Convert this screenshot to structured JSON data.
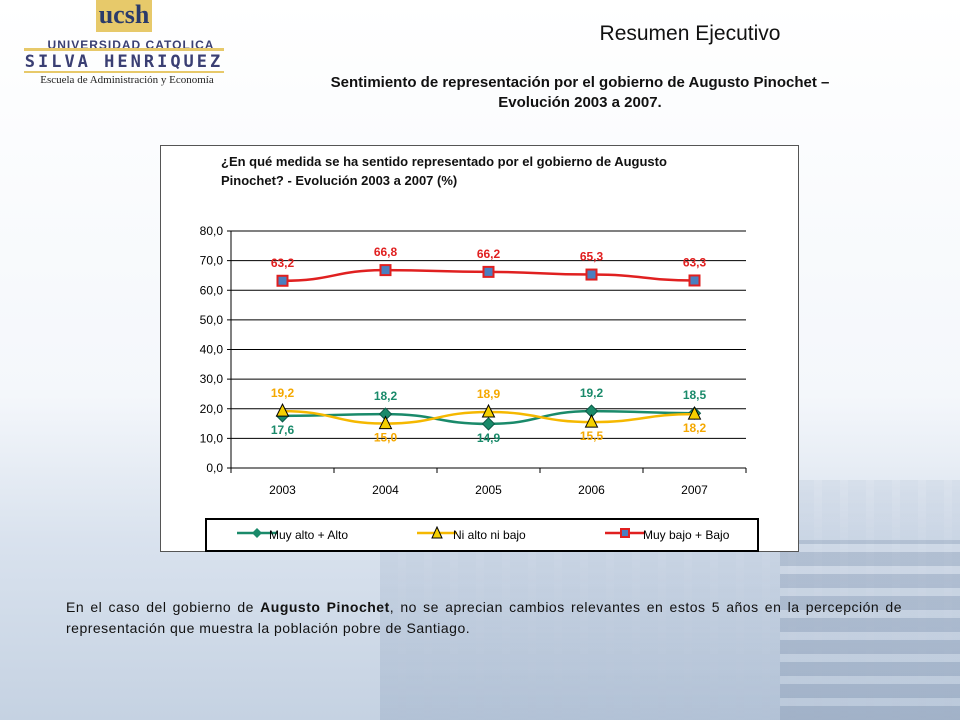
{
  "logo": {
    "acronym": "ucsh",
    "line1": "UNIVERSIDAD CATOLICA",
    "line2": "SILVA HENRIQUEZ",
    "school": "Escuela de Administración y Economía"
  },
  "header": {
    "title": "Resumen Ejecutivo",
    "subtitle_line1": "Sentimiento de representación por el gobierno de Augusto Pinochet –",
    "subtitle_line2": "Evolución 2003 a 2007."
  },
  "chart_data": {
    "type": "line",
    "title_line1": "¿En qué medida se ha sentido representado por el gobierno de Augusto",
    "title_line2": "Pinochet?  - Evolución 2003 a 2007 (%)",
    "categories": [
      "2003",
      "2004",
      "2005",
      "2006",
      "2007"
    ],
    "y_ticks": [
      "80,0",
      "70,0",
      "60,0",
      "50,0",
      "40,0",
      "30,0",
      "20,0",
      "10,0",
      "0,0"
    ],
    "ylim": [
      0,
      80
    ],
    "grid": true,
    "legend_position": "bottom",
    "series": [
      {
        "name": "Muy alto + Alto",
        "values": [
          17.6,
          18.2,
          14.9,
          19.2,
          18.5
        ],
        "labels": [
          "17,6",
          "18,2",
          "14,9",
          "19,2",
          "18,5"
        ],
        "color": "#1a8a6a",
        "marker": "diamond"
      },
      {
        "name": "Ni alto ni bajo",
        "values": [
          19.2,
          15.0,
          18.9,
          15.5,
          18.2
        ],
        "labels": [
          "19,2",
          "15,0",
          "18,9",
          "15,5",
          "18,2"
        ],
        "color": "#f5b800",
        "marker": "triangle"
      },
      {
        "name": "Muy bajo + Bajo",
        "values": [
          63.2,
          66.8,
          66.2,
          65.3,
          63.3
        ],
        "labels": [
          "63,2",
          "66,8",
          "66,2",
          "65,3",
          "63,3"
        ],
        "color": "#e02020",
        "marker": "square"
      }
    ]
  },
  "summary": {
    "pre": "En el caso del gobierno de ",
    "bold": "Augusto Pinochet",
    "post": ", no se aprecian cambios relevantes en estos 5 años en la percepción de representación que muestra la población pobre de Santiago."
  }
}
